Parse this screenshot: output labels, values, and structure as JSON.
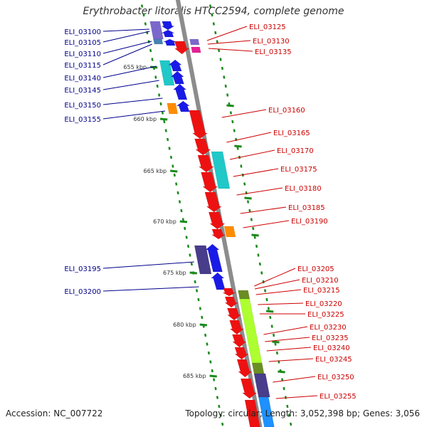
{
  "title": "Erythrobacter litoralis HTCC2594, complete genome",
  "accession": "Accession: NC_007722",
  "topology": "Topology: circular; Length: 3,052,398 bp; Genes: 3,056",
  "colors": {
    "backbone": "#8c8c8c",
    "left_label": "#00008b",
    "right_label": "#cc0000",
    "ruler": "#1a8a1a"
  },
  "kbp_marks": [
    "655 kbp",
    "660 kbp",
    "665 kbp",
    "670 kbp",
    "675 kbp",
    "680 kbp",
    "685 kbp"
  ],
  "left_genes": [
    "ELI_03100",
    "ELI_03105",
    "ELI_03110",
    "ELI_03115",
    "ELI_03140",
    "ELI_03145",
    "ELI_03150",
    "ELI_03155",
    "ELI_03195",
    "ELI_03200"
  ],
  "right_genes": [
    "ELI_03125",
    "ELI_03130",
    "ELI_03135",
    "ELI_03160",
    "ELI_03165",
    "ELI_03170",
    "ELI_03175",
    "ELI_03180",
    "ELI_03185",
    "ELI_03190",
    "ELI_03205",
    "ELI_03210",
    "ELI_03215",
    "ELI_03220",
    "ELI_03225",
    "ELI_03230",
    "ELI_03235",
    "ELI_03240",
    "ELI_03245",
    "ELI_03250",
    "ELI_03255"
  ]
}
